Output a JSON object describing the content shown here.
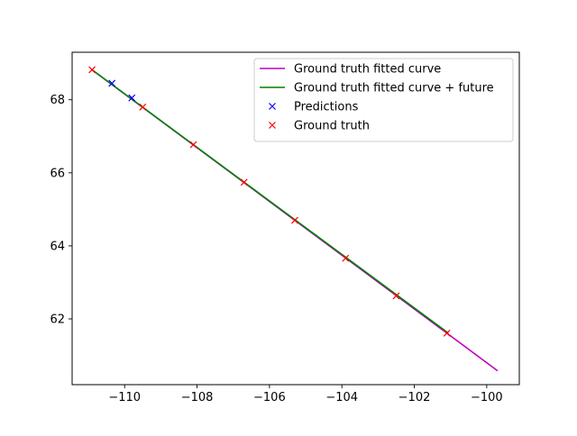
{
  "chart_data": {
    "type": "line",
    "title": "",
    "xlabel": "",
    "ylabel": "",
    "xlim": [
      -111.45,
      -99.1
    ],
    "ylim": [
      60.2,
      69.3
    ],
    "xticks": [
      -110,
      -108,
      -106,
      -104,
      -102,
      -100
    ],
    "yticks": [
      62,
      64,
      66,
      68
    ],
    "grid": false,
    "legend_position": "top-right",
    "series": [
      {
        "name": "Ground truth fitted curve",
        "kind": "line",
        "color": "#bf00bf",
        "points": [
          [
            -110.9,
            68.82
          ],
          [
            -99.7,
            60.58
          ]
        ]
      },
      {
        "name": "Ground truth fitted curve + future",
        "kind": "line",
        "color": "#008000",
        "points": [
          [
            -110.9,
            68.82
          ],
          [
            -101.06,
            61.61
          ]
        ]
      },
      {
        "name": "Predictions",
        "kind": "marker",
        "color": "#0000ff",
        "points": [
          [
            -110.35,
            68.45
          ],
          [
            -109.8,
            68.05
          ]
        ]
      },
      {
        "name": "Ground truth",
        "kind": "marker",
        "color": "#ff0000",
        "points": [
          [
            -110.9,
            68.82
          ],
          [
            -109.5,
            67.8
          ],
          [
            -108.1,
            66.77
          ],
          [
            -106.7,
            65.74
          ],
          [
            -105.3,
            64.7
          ],
          [
            -103.9,
            63.66
          ],
          [
            -102.5,
            62.63
          ],
          [
            -101.1,
            61.61
          ]
        ]
      }
    ]
  }
}
